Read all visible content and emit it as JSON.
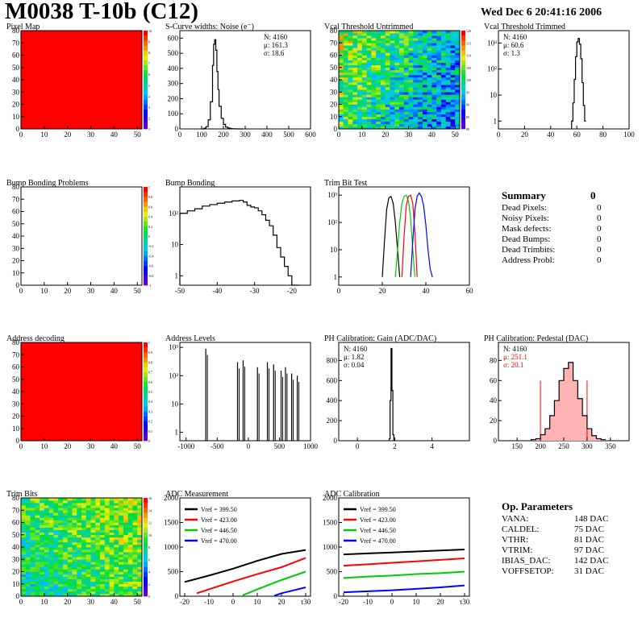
{
  "header": {
    "title": "M0038 T-10b (C12)",
    "date": "Wed Dec  6 20:41:16 2006"
  },
  "summary": {
    "title": "Summary",
    "total": "0",
    "items": [
      {
        "label": "Dead Pixels:",
        "value": "0"
      },
      {
        "label": "Noisy Pixels:",
        "value": "0"
      },
      {
        "label": "Mask defects:",
        "value": "0"
      },
      {
        "label": "Dead Bumps:",
        "value": "0"
      },
      {
        "label": "Dead Trimbits:",
        "value": "0"
      },
      {
        "label": "Address Probl:",
        "value": "0"
      }
    ]
  },
  "op_params": {
    "title": "Op. Parameters",
    "items": [
      {
        "label": "VANA:",
        "value": "148 DAC"
      },
      {
        "label": "CALDEL:",
        "value": "75 DAC"
      },
      {
        "label": "VTHR:",
        "value": "81 DAC"
      },
      {
        "label": "VTRIM:",
        "value": "97 DAC"
      },
      {
        "label": "IBIAS_DAC:",
        "value": "142 DAC"
      },
      {
        "label": "VOFFSETOP:",
        "value": "31 DAC"
      }
    ]
  },
  "colors": {
    "red": "#ff0000",
    "green": "#00cc00",
    "blue": "#0000ff",
    "black": "#000000",
    "pedestal_fill": "#ffb3b3"
  },
  "chart_data": [
    {
      "id": "pixel_map",
      "type": "heatmap",
      "title": "Pixel Map",
      "xticks": [
        0,
        10,
        20,
        30,
        40,
        50
      ],
      "yticks": [
        0,
        10,
        20,
        30,
        40,
        50,
        60,
        70,
        80
      ],
      "xlim": [
        0,
        52
      ],
      "ylim": [
        0,
        80
      ],
      "fill": "uniform",
      "uniform_color": "#ff0000",
      "zticks": [
        "10",
        "9",
        "8",
        "7",
        "6",
        "5",
        "4",
        "3",
        "2",
        "1"
      ]
    },
    {
      "id": "noise",
      "type": "bar",
      "title": "S-Curve widths: Noise (e⁻)",
      "xticks": [
        0,
        100,
        200,
        300,
        400,
        500,
        600
      ],
      "yticks": [
        0,
        100,
        200,
        300,
        400,
        500,
        600
      ],
      "xlim": [
        0,
        600
      ],
      "ylim": [
        0,
        650
      ],
      "stats": [
        "N: 4160",
        "μ: 161.3",
        "σ: 18.6"
      ],
      "x": [
        100,
        110,
        120,
        130,
        140,
        150,
        155,
        160,
        165,
        170,
        175,
        180,
        190,
        200,
        210,
        220,
        230,
        240,
        260,
        280
      ],
      "values": [
        0,
        5,
        15,
        60,
        180,
        420,
        560,
        590,
        520,
        380,
        260,
        150,
        70,
        30,
        12,
        6,
        3,
        1,
        0,
        0
      ]
    },
    {
      "id": "vcal_untrimmed",
      "type": "heatmap",
      "title": "Vcal Threshold Untrimmed",
      "xticks": [
        0,
        10,
        20,
        30,
        40,
        50
      ],
      "yticks": [
        0,
        10,
        20,
        30,
        40,
        50,
        60,
        70,
        80
      ],
      "xlim": [
        0,
        52
      ],
      "ylim": [
        0,
        80
      ],
      "fill": "noise_gradient",
      "zticks": [
        "120",
        "115",
        "110",
        "105",
        "100",
        "95",
        "90",
        "85",
        "80"
      ]
    },
    {
      "id": "vcal_trimmed",
      "type": "bar",
      "title": "Vcal Threshold Trimmed",
      "xticks": [
        0,
        20,
        40,
        60,
        80,
        100
      ],
      "yticks": [
        "1",
        "10",
        "10²",
        "10³"
      ],
      "xlim": [
        0,
        100
      ],
      "ylim_log": [
        0.5,
        3000
      ],
      "stats": [
        "N: 4160",
        "μ: 60.6",
        "σ:  1.3"
      ],
      "x": [
        56,
        57,
        58,
        59,
        60,
        61,
        62,
        63,
        64,
        65,
        66
      ],
      "values": [
        1,
        5,
        40,
        300,
        1100,
        1500,
        900,
        250,
        30,
        4,
        1
      ]
    },
    {
      "id": "bump_problems",
      "type": "heatmap",
      "title": "Bump Bonding Problems",
      "xticks": [
        0,
        10,
        20,
        30,
        40,
        50
      ],
      "yticks": [
        0,
        10,
        20,
        30,
        40,
        50,
        60,
        70,
        80
      ],
      "xlim": [
        0,
        52
      ],
      "ylim": [
        0,
        80
      ],
      "fill": "empty",
      "zticks": [
        "1",
        "0.8",
        "0.6",
        "0.4",
        "0.2",
        "0",
        "-0.2",
        "-0.4",
        "-0.6",
        "-0.8",
        "-1"
      ]
    },
    {
      "id": "bump_bonding",
      "type": "bar",
      "title": "Bump Bonding",
      "xticks": [
        -50,
        -40,
        -30,
        -20
      ],
      "yticks": [
        "1",
        "10",
        "10²"
      ],
      "xlim": [
        -50,
        -15
      ],
      "ylim_log": [
        0.5,
        700
      ],
      "x": [
        -50,
        -48,
        -46,
        -44,
        -42,
        -40,
        -38,
        -36,
        -34,
        -33,
        -32,
        -31,
        -30,
        -29,
        -28,
        -27,
        -26,
        -25,
        -24,
        -23,
        -22,
        -21,
        -20
      ],
      "values": [
        100,
        120,
        140,
        170,
        190,
        210,
        230,
        250,
        260,
        230,
        180,
        160,
        150,
        120,
        90,
        60,
        40,
        20,
        8,
        4,
        2,
        1,
        0
      ]
    },
    {
      "id": "trim_bit_test",
      "type": "line",
      "title": "Trim Bit Test",
      "xticks": [
        0,
        20,
        40,
        60
      ],
      "yticks": [
        "1",
        "10",
        "10²",
        "10³"
      ],
      "xlim": [
        0,
        60
      ],
      "ylim_log": [
        0.5,
        2000
      ],
      "series": [
        {
          "color": "#000000",
          "x": [
            20,
            21,
            22,
            23,
            24,
            25,
            26,
            27,
            28
          ],
          "values": [
            1,
            20,
            300,
            800,
            900,
            500,
            100,
            10,
            1
          ]
        },
        {
          "color": "#00cc00",
          "x": [
            26,
            27,
            28,
            29,
            30,
            31,
            32,
            33,
            34,
            35
          ],
          "values": [
            1,
            10,
            100,
            500,
            900,
            1000,
            600,
            150,
            10,
            1
          ]
        },
        {
          "color": "#ff0000",
          "x": [
            29,
            30,
            31,
            32,
            33,
            34,
            35,
            36
          ],
          "values": [
            1,
            30,
            400,
            900,
            1000,
            500,
            40,
            1
          ]
        },
        {
          "color": "#0000ff",
          "x": [
            33,
            34,
            35,
            36,
            37,
            38,
            39,
            40,
            41,
            42,
            43
          ],
          "values": [
            1,
            20,
            300,
            900,
            1200,
            900,
            400,
            80,
            10,
            2,
            1
          ]
        }
      ]
    },
    {
      "id": "address_decoding",
      "type": "heatmap",
      "title": "Address decoding",
      "xticks": [
        0,
        10,
        20,
        30,
        40,
        50
      ],
      "yticks": [
        0,
        10,
        20,
        30,
        40,
        50,
        60,
        70,
        80
      ],
      "xlim": [
        0,
        52
      ],
      "ylim": [
        0,
        80
      ],
      "fill": "uniform",
      "uniform_color": "#ff0000",
      "zticks": [
        "1",
        "0.9",
        "0.8",
        "0.7",
        "0.6",
        "0.5",
        "0.4",
        "0.3",
        "0.2",
        "0.1",
        "0"
      ]
    },
    {
      "id": "address_levels",
      "type": "bar",
      "title": "Address Levels",
      "xticks": [
        -1000,
        -500,
        0,
        500,
        1000
      ],
      "yticks": [
        "1",
        "10",
        "10²",
        "10³"
      ],
      "xlim": [
        -1100,
        1000
      ],
      "ylim_log": [
        0.5,
        1500
      ],
      "x": [
        -670,
        -160,
        -70,
        160,
        320,
        420,
        540,
        610,
        710,
        800
      ],
      "values": [
        900,
        300,
        350,
        200,
        300,
        250,
        150,
        200,
        120,
        100
      ]
    },
    {
      "id": "ph_gain",
      "type": "bar",
      "title": "PH Calibration: Gain (ADC/DAC)",
      "xticks": [
        0,
        2,
        4
      ],
      "yticks": [
        0,
        200,
        400,
        600,
        800
      ],
      "xlim": [
        -1,
        6
      ],
      "ylim": [
        0,
        980
      ],
      "stats": [
        "N: 4160",
        "μ: 1.82",
        "σ: 0.04"
      ],
      "x": [
        1.7,
        1.75,
        1.8,
        1.85,
        1.9,
        1.95
      ],
      "values": [
        20,
        400,
        920,
        500,
        60,
        5
      ]
    },
    {
      "id": "ph_pedestal",
      "type": "bar",
      "title": "PH Calibration: Pedestal (DAC)",
      "xticks": [
        150,
        200,
        250,
        300,
        350
      ],
      "yticks": [
        0,
        20,
        40,
        60,
        80
      ],
      "xlim": [
        110,
        390
      ],
      "ylim": [
        0,
        98
      ],
      "stats": [
        "N: 4160",
        "μ: 251.1",
        "σ: 20.1"
      ],
      "stats_colors": [
        "#000000",
        "#ff0000",
        "#ff0000"
      ],
      "x": [
        180,
        190,
        200,
        210,
        220,
        230,
        240,
        250,
        260,
        270,
        280,
        290,
        300,
        310,
        320,
        330
      ],
      "values": [
        1,
        2,
        6,
        12,
        25,
        40,
        60,
        72,
        78,
        60,
        42,
        25,
        12,
        5,
        2,
        1
      ],
      "fit_range": [
        200,
        300
      ]
    },
    {
      "id": "trim_bits",
      "type": "heatmap",
      "title": "Trim Bits",
      "xticks": [
        0,
        10,
        20,
        30,
        40,
        50
      ],
      "yticks": [
        0,
        10,
        20,
        30,
        40,
        50,
        60,
        70,
        80
      ],
      "xlim": [
        0,
        52
      ],
      "ylim": [
        0,
        80
      ],
      "fill": "trim_gradient",
      "zticks": [
        "16",
        "14",
        "12",
        "10",
        "8",
        "6",
        "4",
        "2",
        "0"
      ]
    },
    {
      "id": "adc_measurement",
      "type": "line",
      "title": "ADC Measurement",
      "xticks": [
        -20,
        -10,
        0,
        10,
        20,
        30
      ],
      "xticklabel_last": "τ30",
      "yticks": [
        0,
        500,
        1000,
        1500,
        2000
      ],
      "xlim": [
        -22,
        32
      ],
      "ylim": [
        0,
        2000
      ],
      "series": [
        {
          "name": "Vref = 399.50",
          "color": "#000000",
          "x": [
            -20,
            -10,
            0,
            10,
            20,
            30
          ],
          "values": [
            290,
            420,
            560,
            720,
            860,
            940
          ]
        },
        {
          "name": "Vref = 423.00",
          "color": "#ff0000",
          "x": [
            -15,
            -10,
            0,
            10,
            20,
            30
          ],
          "values": [
            60,
            140,
            300,
            450,
            590,
            780
          ]
        },
        {
          "name": "Vref = 446.50",
          "color": "#00cc00",
          "x": [
            4,
            10,
            20,
            30
          ],
          "values": [
            20,
            140,
            330,
            500
          ]
        },
        {
          "name": "Vref = 470.00",
          "color": "#0000ff",
          "x": [
            17,
            20,
            25,
            30
          ],
          "values": [
            10,
            60,
            120,
            180
          ]
        }
      ]
    },
    {
      "id": "adc_calibration",
      "type": "line",
      "title": "ADC Calibration",
      "xticks": [
        -20,
        -10,
        0,
        10,
        20,
        30
      ],
      "xticklabel_last": "τ30",
      "yticks": [
        0,
        500,
        1000,
        1500,
        2000
      ],
      "xlim": [
        -22,
        32
      ],
      "ylim": [
        0,
        2000
      ],
      "series": [
        {
          "name": "Vref = 399.50",
          "color": "#000000",
          "x": [
            -20,
            -10,
            0,
            10,
            20,
            30
          ],
          "values": [
            850,
            870,
            890,
            910,
            930,
            950
          ]
        },
        {
          "name": "Vref = 423.00",
          "color": "#ff0000",
          "x": [
            -20,
            -10,
            0,
            10,
            20,
            30
          ],
          "values": [
            620,
            650,
            680,
            710,
            740,
            770
          ]
        },
        {
          "name": "Vref = 446.50",
          "color": "#00cc00",
          "x": [
            -20,
            -10,
            0,
            10,
            20,
            30
          ],
          "values": [
            370,
            400,
            420,
            450,
            470,
            500
          ]
        },
        {
          "name": "Vref = 470.00",
          "color": "#0000ff",
          "x": [
            -20,
            -10,
            0,
            10,
            20,
            30
          ],
          "values": [
            80,
            100,
            120,
            150,
            180,
            220
          ]
        }
      ]
    }
  ]
}
